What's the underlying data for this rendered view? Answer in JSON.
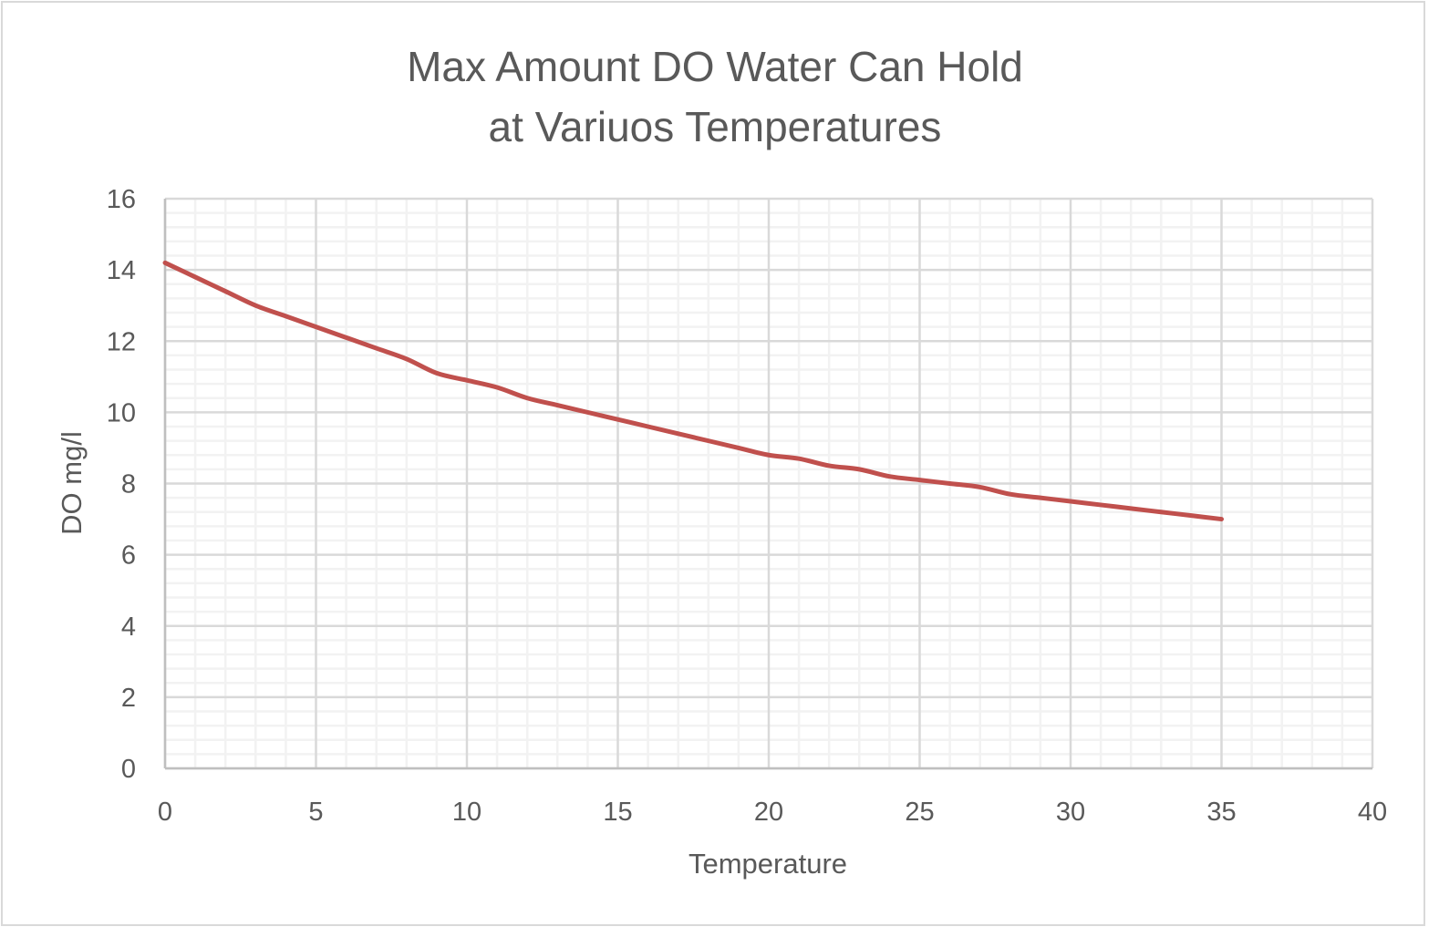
{
  "chart_data": {
    "type": "line",
    "title_lines": [
      "Max Amount DO Water Can Hold",
      "at Variuos Temperatures"
    ],
    "title": "Max Amount DO Water Can Hold at Variuos Temperatures",
    "xlabel": "Temperature",
    "ylabel": "DO mg/l",
    "xlim": [
      0,
      40
    ],
    "ylim": [
      0,
      16
    ],
    "x_major_step": 5,
    "x_minor_step": 1,
    "y_major_step": 2,
    "y_minor_step": 0.4,
    "x_ticks": [
      "0",
      "5",
      "10",
      "15",
      "20",
      "25",
      "30",
      "35",
      "40"
    ],
    "y_ticks": [
      "0",
      "2",
      "4",
      "6",
      "8",
      "10",
      "12",
      "14",
      "16"
    ],
    "grid": true,
    "legend": "none",
    "series": [
      {
        "name": "DO mg/l",
        "color": "#c0504d",
        "x": [
          0,
          1,
          2,
          3,
          4,
          5,
          6,
          7,
          8,
          9,
          10,
          11,
          12,
          13,
          14,
          15,
          16,
          17,
          18,
          19,
          20,
          21,
          22,
          23,
          24,
          25,
          26,
          27,
          28,
          29,
          30,
          31,
          32,
          33,
          34,
          35
        ],
        "values": [
          14.2,
          13.8,
          13.4,
          13.0,
          12.7,
          12.4,
          12.1,
          11.8,
          11.5,
          11.1,
          10.9,
          10.7,
          10.4,
          10.2,
          10.0,
          9.8,
          9.6,
          9.4,
          9.2,
          9.0,
          8.8,
          8.7,
          8.5,
          8.4,
          8.2,
          8.1,
          8.0,
          7.9,
          7.7,
          7.6,
          7.5,
          7.4,
          7.3,
          7.2,
          7.1,
          7.0
        ]
      }
    ]
  },
  "colors": {
    "line": "#c0504d",
    "major_grid": "#d9d9d9",
    "minor_grid": "#f2f2f2",
    "text": "#595959",
    "border": "#d9d9d9"
  }
}
